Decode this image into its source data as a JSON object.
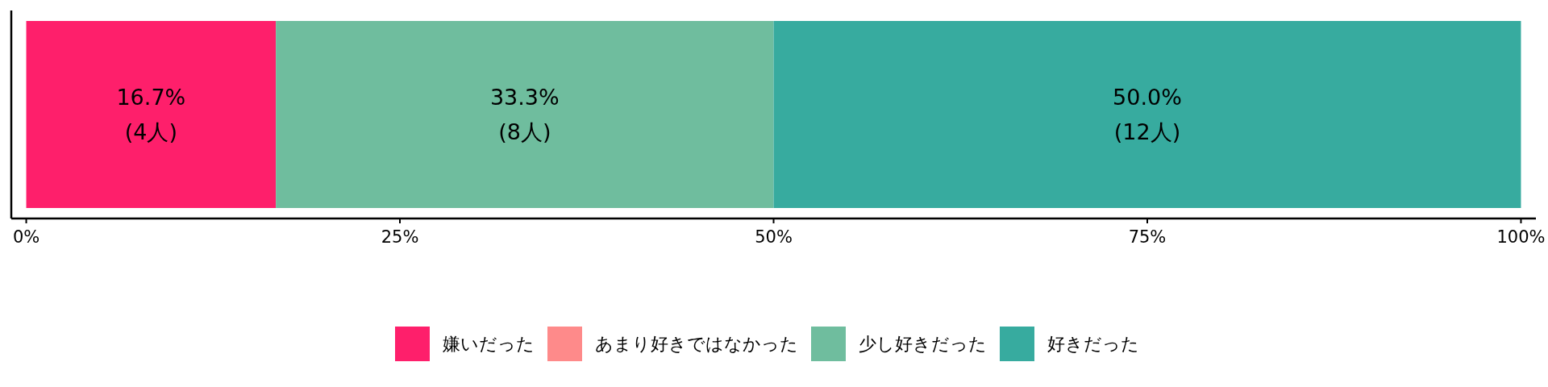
{
  "chart_data": {
    "type": "bar",
    "orientation": "horizontal",
    "stacked": true,
    "categories": [
      null
    ],
    "series": [
      {
        "name": "嫌いだった",
        "color": "#fe1f6b",
        "values": [
          16.7
        ],
        "value_labels": [
          "16.7%\n(4人)"
        ]
      },
      {
        "name": "あまり好きではなかった",
        "color": "#fe8a8a",
        "values": [
          0
        ],
        "value_labels": [
          null
        ]
      },
      {
        "name": "少し好きだった",
        "color": "#6fbd9e",
        "values": [
          33.3
        ],
        "value_labels": [
          "33.3%\n(8人)"
        ]
      },
      {
        "name": "好きだった",
        "color": "#37ab9f",
        "values": [
          50.0
        ],
        "value_labels": [
          "50.0%\n(12人)"
        ]
      }
    ],
    "xlim": [
      -1,
      101
    ],
    "xticks": [
      {
        "value": 0,
        "label": "0%"
      },
      {
        "value": 25,
        "label": "25%"
      },
      {
        "value": 50,
        "label": "50%"
      },
      {
        "value": 75,
        "label": "75%"
      },
      {
        "value": 100,
        "label": "100%"
      }
    ],
    "legend": "bottom"
  }
}
